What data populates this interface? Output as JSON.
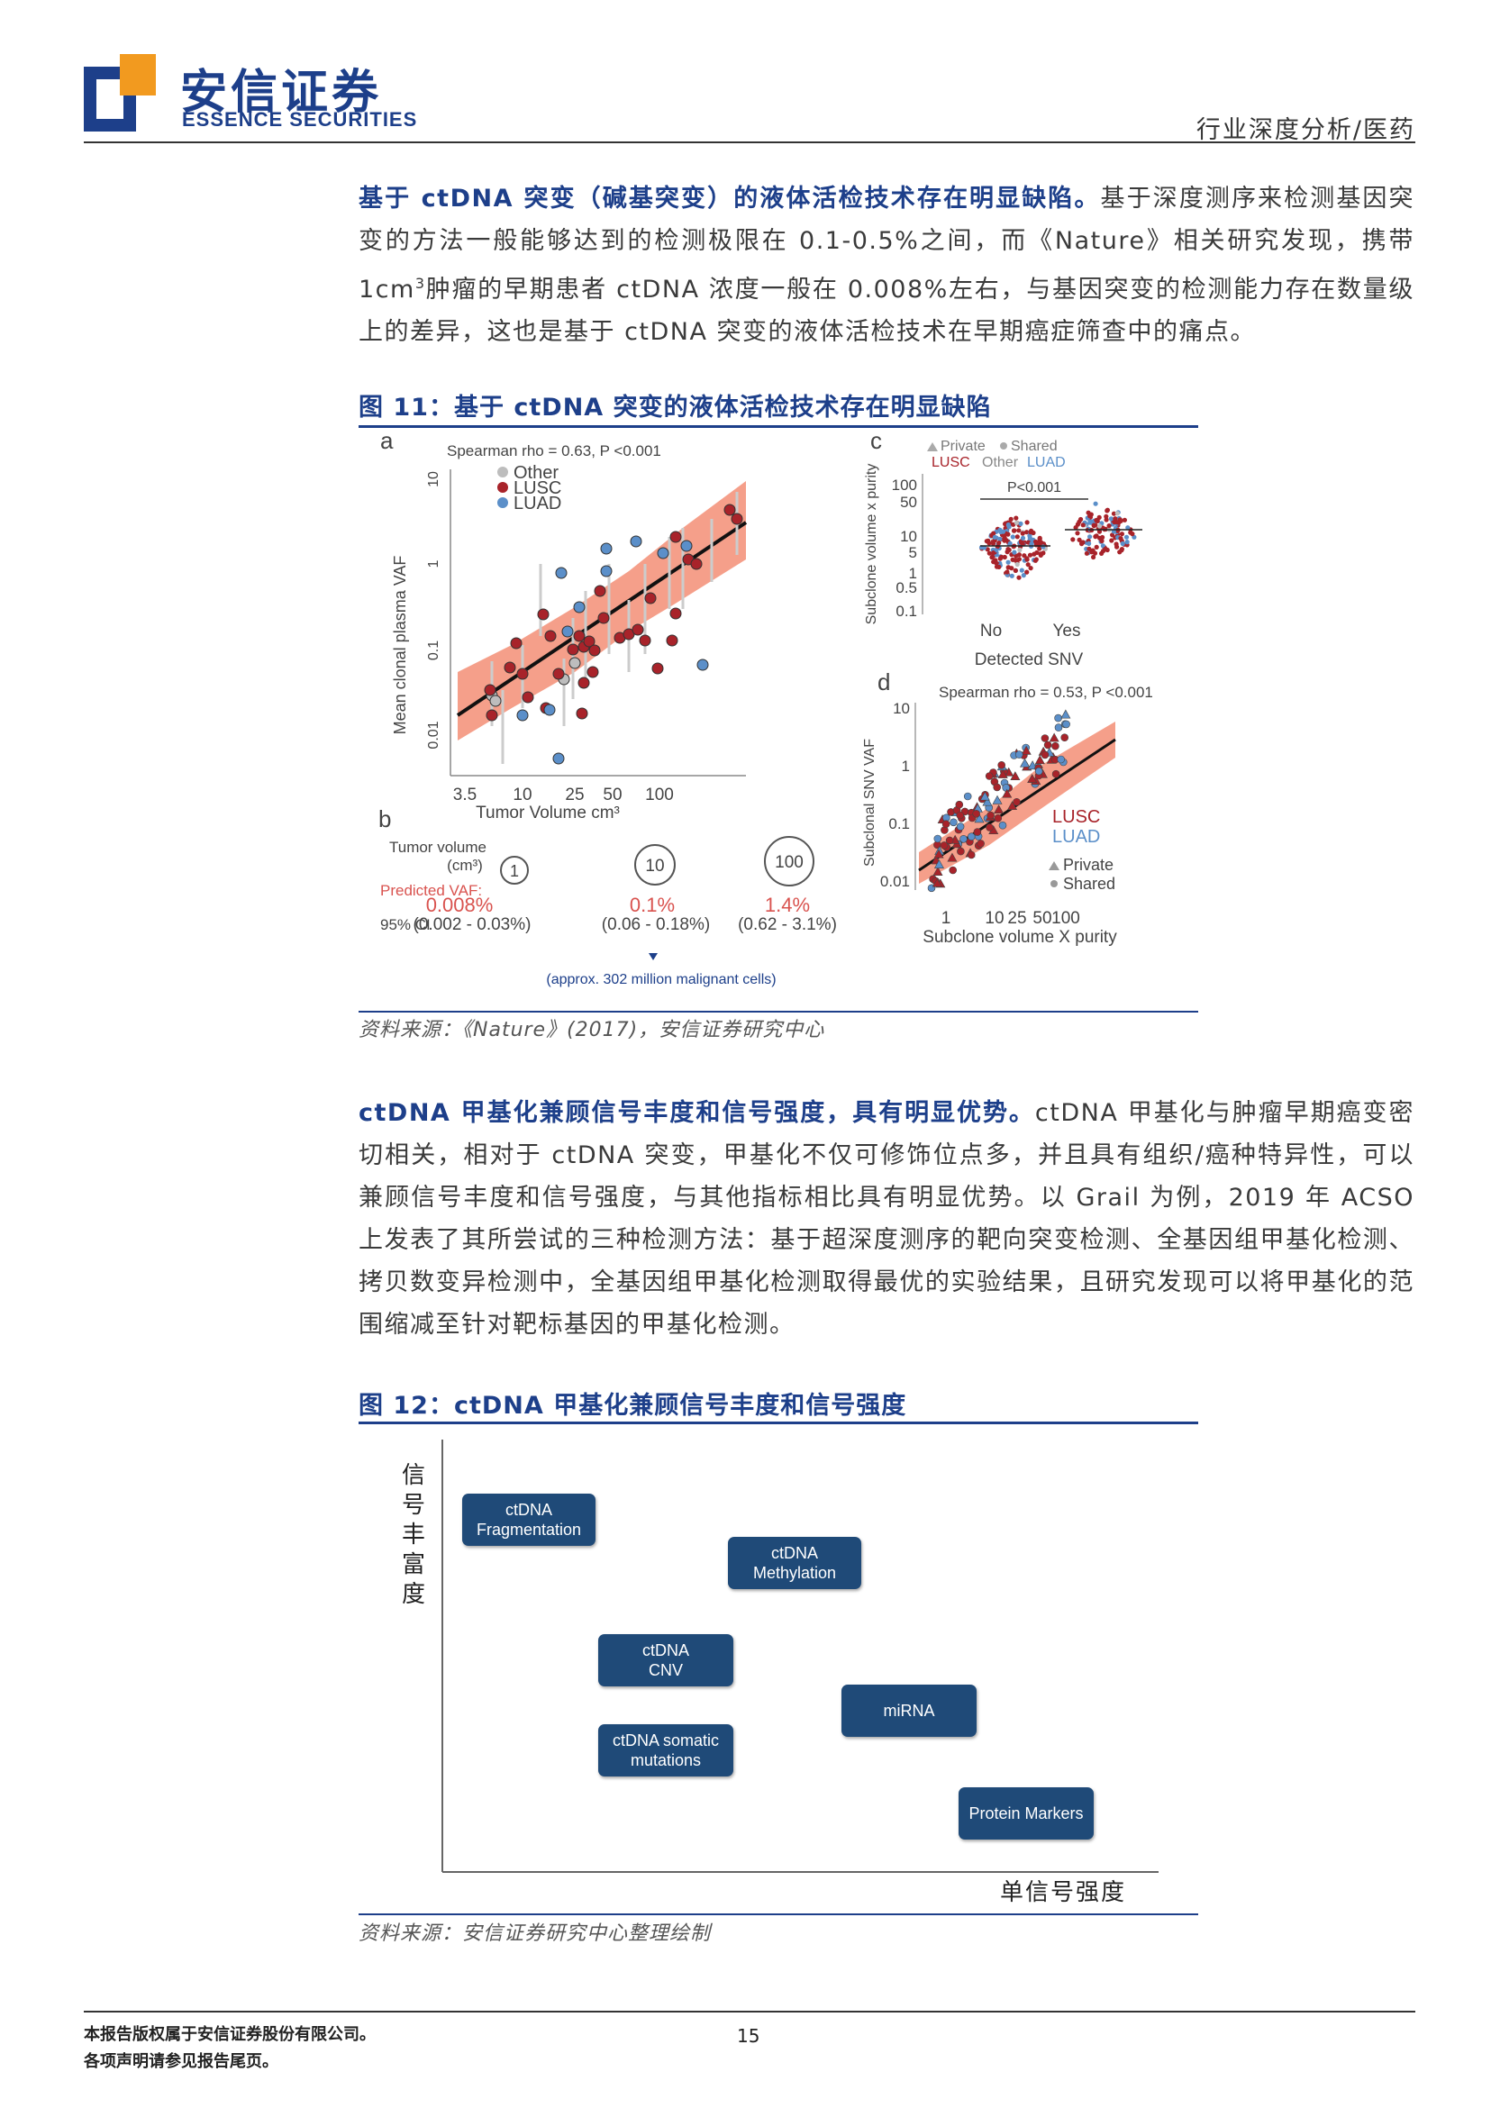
{
  "header": {
    "brand_cn": "安信证券",
    "brand_en": "ESSENCE SECURITIES",
    "section": "行业深度分析/医药"
  },
  "para1": {
    "lead": "基于 ctDNA 突变（碱基突变）的液体活检技术存在明显缺陷。",
    "text_a": "基于深度测序来检测基因突变的方法一般能够达到的检测极限在 0.1-0.5%之间，而《Nature》相关研究发现，携带 1cm",
    "sup": "3",
    "text_b": "肿瘤的早期患者 ctDNA 浓度一般在 0.008%左右，与基因突变的检测能力存在数量级上的差异，这也是基于 ctDNA 突变的液体活检技术在早期癌症筛查中的痛点。"
  },
  "figure11": {
    "title": "图 11：基于 ctDNA 突变的液体活检技术存在明显缺陷",
    "source": "资料来源：《Nature》(2017)，安信证券研究中心",
    "panel_a": {
      "letter": "a",
      "stat": "Spearman rho = 0.63, P <0.001",
      "legend": [
        "Other",
        "LUSC",
        "LUAD"
      ],
      "ylabel": "Mean clonal plasma VAF",
      "yticks": [
        "10",
        "1",
        "0.1",
        "0.01"
      ],
      "xticks": [
        "3.5",
        "10",
        "25",
        "50",
        "100"
      ],
      "xlabel": "Tumor Volume cm³"
    },
    "panel_b": {
      "letter": "b",
      "tumor_label": "Tumor volume",
      "unit_label": "(cm³)",
      "vaf_label": "Predicted VAF:",
      "ci_label": "95% CI",
      "volumes": [
        "1",
        "10",
        "100"
      ],
      "vafs": [
        "0.008%",
        "0.1%",
        "1.4%"
      ],
      "cis": [
        "(0.002 - 0.03%)",
        "(0.06 - 0.18%)",
        "(0.62 - 3.1%)"
      ],
      "note": "(approx. 302 million malignant cells)"
    },
    "panel_c": {
      "letter": "c",
      "legend1_a": "Private",
      "legend1_b": "Shared",
      "legend2_a": "LUSC",
      "legend2_b": "Other",
      "legend2_c": "LUAD",
      "pvalue": "P<0.001",
      "ylabel": "Subclone volume x purity",
      "yticks": [
        "100",
        "50",
        "10",
        "5",
        "1",
        "0.5",
        "0.1"
      ],
      "xticks": [
        "No",
        "Yes"
      ],
      "xlabel": "Detected SNV"
    },
    "panel_d": {
      "letter": "d",
      "stat": "Spearman rho = 0.53, P <0.001",
      "ylabel": "Subclonal SNV VAF",
      "yticks": [
        "10",
        "1",
        "0.1",
        "0.01"
      ],
      "xticks": [
        "1",
        "10",
        "25",
        "50",
        "100"
      ],
      "xlabel": "Subclone volume X purity",
      "legend": [
        "LUSC",
        "LUAD",
        "Private",
        "Shared"
      ]
    }
  },
  "para2": {
    "lead": "ctDNA 甲基化兼顾信号丰度和信号强度，具有明显优势。",
    "text": "ctDNA 甲基化与肿瘤早期癌变密切相关，相对于 ctDNA 突变，甲基化不仅可修饰位点多，并且具有组织/癌种特异性，可以兼顾信号丰度和信号强度，与其他指标相比具有明显优势。以 Grail 为例，2019 年 ACSO 上发表了其所尝试的三种检测方法：基于超深度测序的靶向突变检测、全基因组甲基化检测、拷贝数变异检测中，全基因组甲基化检测取得最优的实验结果，且研究发现可以将甲基化的范围缩减至针对靶标基因的甲基化检测。"
  },
  "figure12": {
    "title": "图 12：ctDNA 甲基化兼顾信号丰度和信号强度",
    "source": "资料来源：安信证券研究中心整理绘制",
    "y_label": [
      "信",
      "号",
      "丰",
      "富",
      "度"
    ],
    "x_label": "单信号强度",
    "boxes": [
      {
        "line1": "ctDNA",
        "line2": "Fragmentation"
      },
      {
        "line1": "ctDNA",
        "line2": "Methylation"
      },
      {
        "line1": "ctDNA",
        "line2": "CNV"
      },
      {
        "line1": "miRNA",
        "line2": ""
      },
      {
        "line1": "ctDNA somatic",
        "line2": "mutations"
      },
      {
        "line1": "Protein Markers",
        "line2": ""
      }
    ]
  },
  "footer": {
    "line1": "本报告版权属于安信证券股份有限公司。",
    "line2": "各项声明请参见报告尾页。",
    "page": "15"
  },
  "colors": {
    "brand_blue": "#1d3f8a",
    "logo_orange": "#f29a1f",
    "lusc": "#a8232a",
    "luad": "#5b8fc9",
    "other": "#bdbdbd",
    "ci_band": "#f38e76"
  }
}
